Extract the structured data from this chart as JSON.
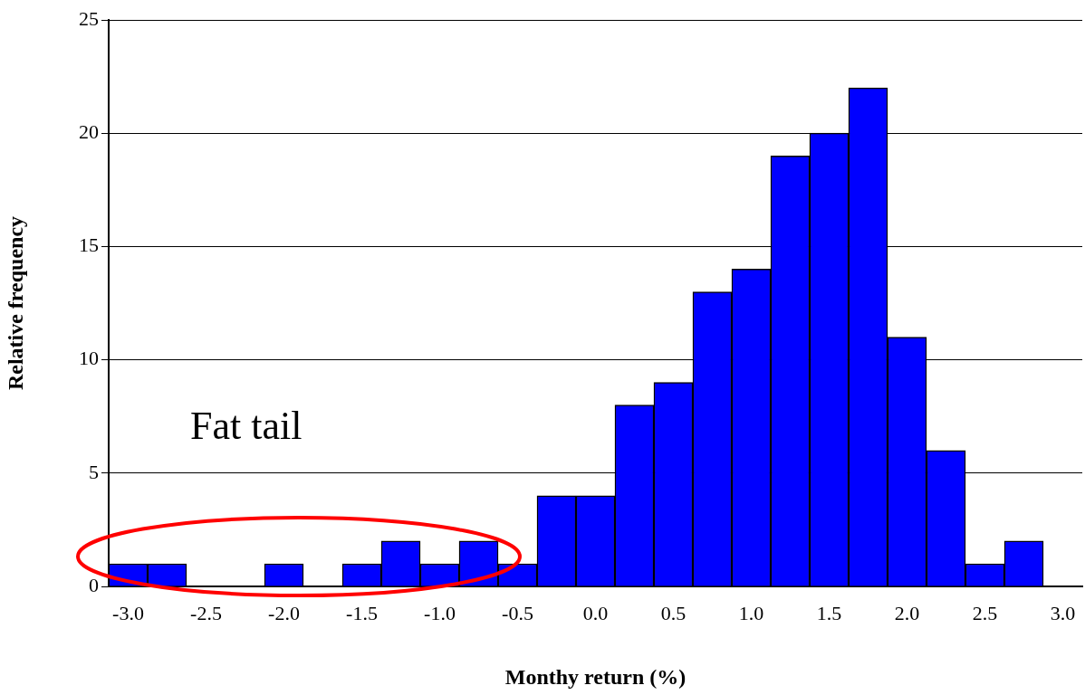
{
  "chart_data": {
    "type": "bar",
    "xlabel": "Monthy return (%)",
    "ylabel": "Relative frequency",
    "categories": [
      "-3.0",
      null,
      "-2.5",
      null,
      "-2.0",
      null,
      "-1.5",
      null,
      "-1.0",
      null,
      "-0.5",
      null,
      "0.0",
      null,
      "0.5",
      null,
      "1.0",
      null,
      "1.5",
      null,
      "2.0",
      null,
      "2.5",
      null,
      "3.0"
    ],
    "values": [
      1,
      1,
      0,
      0,
      1,
      0,
      1,
      2,
      1,
      2,
      1,
      4,
      4,
      8,
      9,
      13,
      14,
      19,
      20,
      22,
      11,
      6,
      1,
      2,
      0
    ],
    "color": "#0000ff",
    "ylim": [
      0,
      25
    ],
    "yticks": [
      0,
      5,
      10,
      15,
      20,
      25
    ],
    "grid": "y",
    "legend": false,
    "annotations": [
      "Fat tail"
    ]
  }
}
